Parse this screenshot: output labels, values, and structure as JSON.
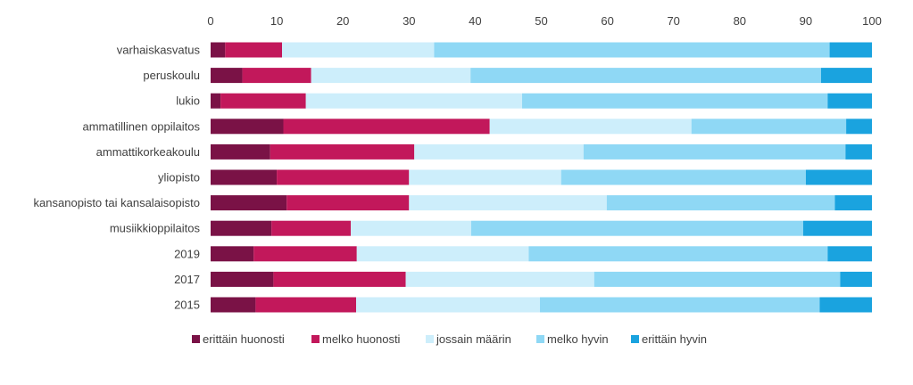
{
  "chart_data": {
    "type": "bar",
    "orientation": "horizontal",
    "stacked": true,
    "title": "",
    "xlabel": "",
    "ylabel": "",
    "xlim": [
      0,
      100
    ],
    "xticks": [
      0,
      10,
      20,
      30,
      40,
      50,
      60,
      70,
      80,
      90,
      100
    ],
    "x_axis_position": "top",
    "grid": false,
    "legend_position": "bottom",
    "categories": [
      "varhaiskasvatus",
      "peruskoulu",
      "lukio",
      "ammatillinen oppilaitos",
      "ammattikorkeakoulu",
      "yliopisto",
      "kansanopisto tai kansalaisopisto",
      "musiikkioppilaitos",
      "2019",
      "2017",
      "2015"
    ],
    "series": [
      {
        "name": "erittäin huonosti",
        "color": "#7a1246",
        "values": [
          2.2,
          4.8,
          1.5,
          11.0,
          9.0,
          10.0,
          11.5,
          9.2,
          6.5,
          9.5,
          6.8
        ]
      },
      {
        "name": "melko huonosti",
        "color": "#c2185b",
        "values": [
          8.6,
          10.4,
          12.9,
          31.2,
          21.8,
          20.0,
          18.5,
          12.0,
          15.6,
          20.0,
          15.2
        ]
      },
      {
        "name": "jossain määrin",
        "color": "#cdeefb",
        "values": [
          23.0,
          24.1,
          32.7,
          30.5,
          25.6,
          23.0,
          29.9,
          18.2,
          26.0,
          28.5,
          27.8
        ]
      },
      {
        "name": "melko hyvin",
        "color": "#8fd8f5",
        "values": [
          59.8,
          53.0,
          46.2,
          23.4,
          39.6,
          37.0,
          34.5,
          50.2,
          45.2,
          37.2,
          42.3
        ]
      },
      {
        "name": "erittäin hyvin",
        "color": "#1aa3df",
        "values": [
          6.4,
          7.7,
          6.7,
          3.9,
          4.0,
          10.0,
          5.6,
          10.4,
          6.7,
          4.8,
          7.9
        ]
      }
    ]
  }
}
